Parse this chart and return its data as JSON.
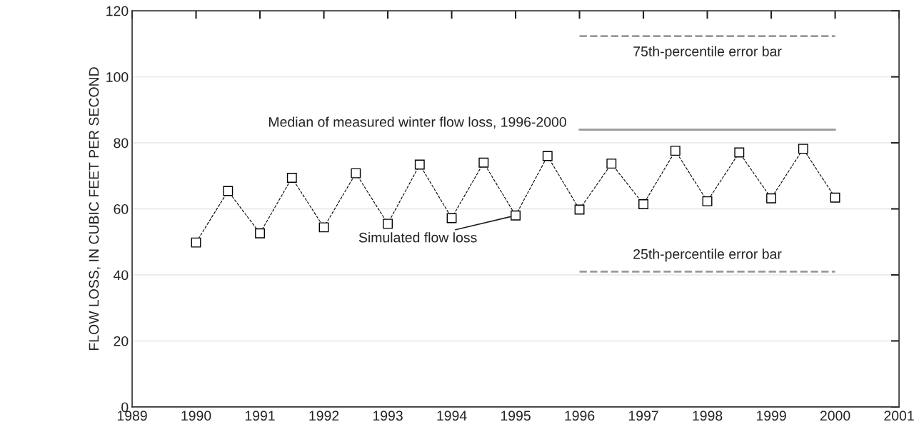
{
  "chart_data": {
    "type": "line",
    "ylabel": "FLOW LOSS, IN CUBIC FEET PER SECOND",
    "xlim": [
      1989,
      2001
    ],
    "xticks": [
      1989,
      1990,
      1991,
      1992,
      1993,
      1994,
      1995,
      1996,
      1997,
      1998,
      1999,
      2000,
      2001
    ],
    "ylim": [
      0,
      120
    ],
    "yticks": [
      0,
      20,
      40,
      60,
      80,
      100,
      120
    ],
    "grid": "y",
    "series": [
      {
        "color": "#000000",
        "marker": "square",
        "line_style": "dashed",
        "x": [
          1990,
          1990.5,
          1991,
          1991.5,
          1992,
          1992.5,
          1993,
          1993.5,
          1994,
          1994.5,
          1995,
          1995.5,
          1996,
          1996.5,
          1997,
          1997.5,
          1998,
          1998.5,
          1999,
          1999.5,
          2000
        ],
        "values": [
          49.8,
          65.4,
          52.6,
          69.4,
          54.4,
          70.8,
          55.5,
          73.4,
          57.2,
          74.0,
          58.0,
          76.0,
          59.8,
          73.7,
          61.4,
          77.6,
          62.3,
          77.1,
          63.2,
          78.2,
          63.4
        ]
      },
      {
        "color": "#999999",
        "marker": "none",
        "line_style": "dashed",
        "x": [
          1996,
          2000
        ],
        "values": [
          112.3,
          112.3
        ]
      },
      {
        "color": "#999999",
        "marker": "none",
        "line_style": "solid",
        "x": [
          1996,
          2000
        ],
        "values": [
          84,
          84
        ]
      },
      {
        "color": "#999999",
        "marker": "none",
        "line_style": "dashed",
        "x": [
          1996,
          2000
        ],
        "values": [
          41,
          41
        ]
      }
    ],
    "annotations": [
      {
        "text": "75th-percentile error bar",
        "x": 1998,
        "y": 112.3
      },
      {
        "text": "Median of measured winter flow loss, 1996-2000",
        "x": 1996,
        "y": 84
      },
      {
        "text": "Simulated flow loss",
        "x": 1995,
        "y": 58
      },
      {
        "text": "25th-percentile error bar",
        "x": 1998,
        "y": 41
      }
    ]
  }
}
